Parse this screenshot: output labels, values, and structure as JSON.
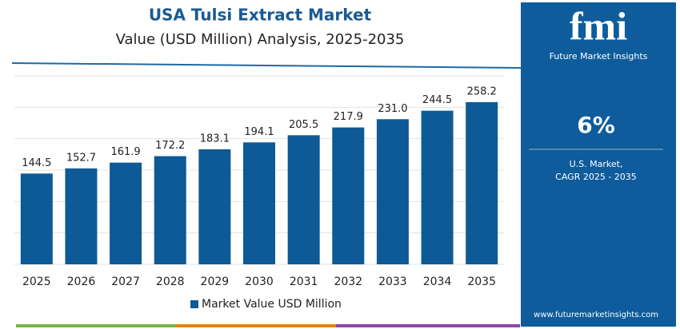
{
  "chart_data": {
    "type": "bar",
    "title": "USA Tulsi Extract Market",
    "subtitle": "Value (USD Million) Analysis, 2025-2035",
    "categories": [
      "2025",
      "2026",
      "2027",
      "2028",
      "2029",
      "2030",
      "2031",
      "2032",
      "2033",
      "2034",
      "2035"
    ],
    "series": [
      {
        "name": "Market Value USD Million",
        "color": "#0d5a96",
        "values": [
          144.5,
          152.7,
          161.9,
          172.2,
          183.1,
          194.1,
          205.5,
          217.9,
          231.0,
          244.5,
          258.2
        ],
        "value_labels": [
          "144.5",
          "152.7",
          "161.9",
          "172.2",
          "183.1",
          "194.1",
          "205.5",
          "217.9",
          "231.0",
          "244.5",
          "258.2"
        ]
      }
    ],
    "ylim": [
      0,
      300
    ],
    "yticks": [
      0,
      50,
      100,
      150,
      200,
      250,
      300
    ],
    "grid": true,
    "legend": "bottom"
  },
  "panel": {
    "logo": "fmi",
    "brand": "Future Market Insights",
    "cagr": "6%",
    "market": "U.S. Market,",
    "period": "CAGR 2025 - 2035",
    "website": "www.futuremarketinsights.com"
  }
}
